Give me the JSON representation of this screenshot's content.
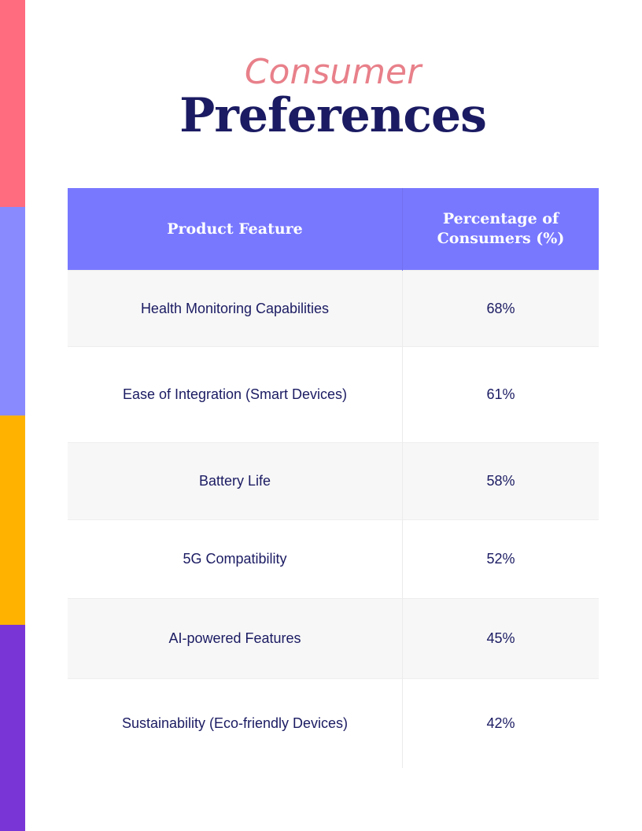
{
  "colors": {
    "stripes": [
      "#FF6B7F",
      "#8A8AFF",
      "#FFB300",
      "#7A35D6"
    ],
    "header_bg": "#7878FF",
    "title": "#1B1B63",
    "subtitle": "#E8808A"
  },
  "heading": {
    "subtitle": "Consumer",
    "title": "Preferences"
  },
  "table": {
    "headers": [
      "Product Feature",
      "Percentage of Consumers (%)"
    ],
    "rows": [
      [
        "Health Monitoring Capabilities",
        "68%"
      ],
      [
        "Ease of Integration (Smart Devices)",
        "61%"
      ],
      [
        "Battery Life",
        "58%"
      ],
      [
        "5G Compatibility",
        "52%"
      ],
      [
        "AI-powered Features",
        "45%"
      ],
      [
        "Sustainability (Eco-friendly Devices)",
        "42%"
      ]
    ]
  }
}
